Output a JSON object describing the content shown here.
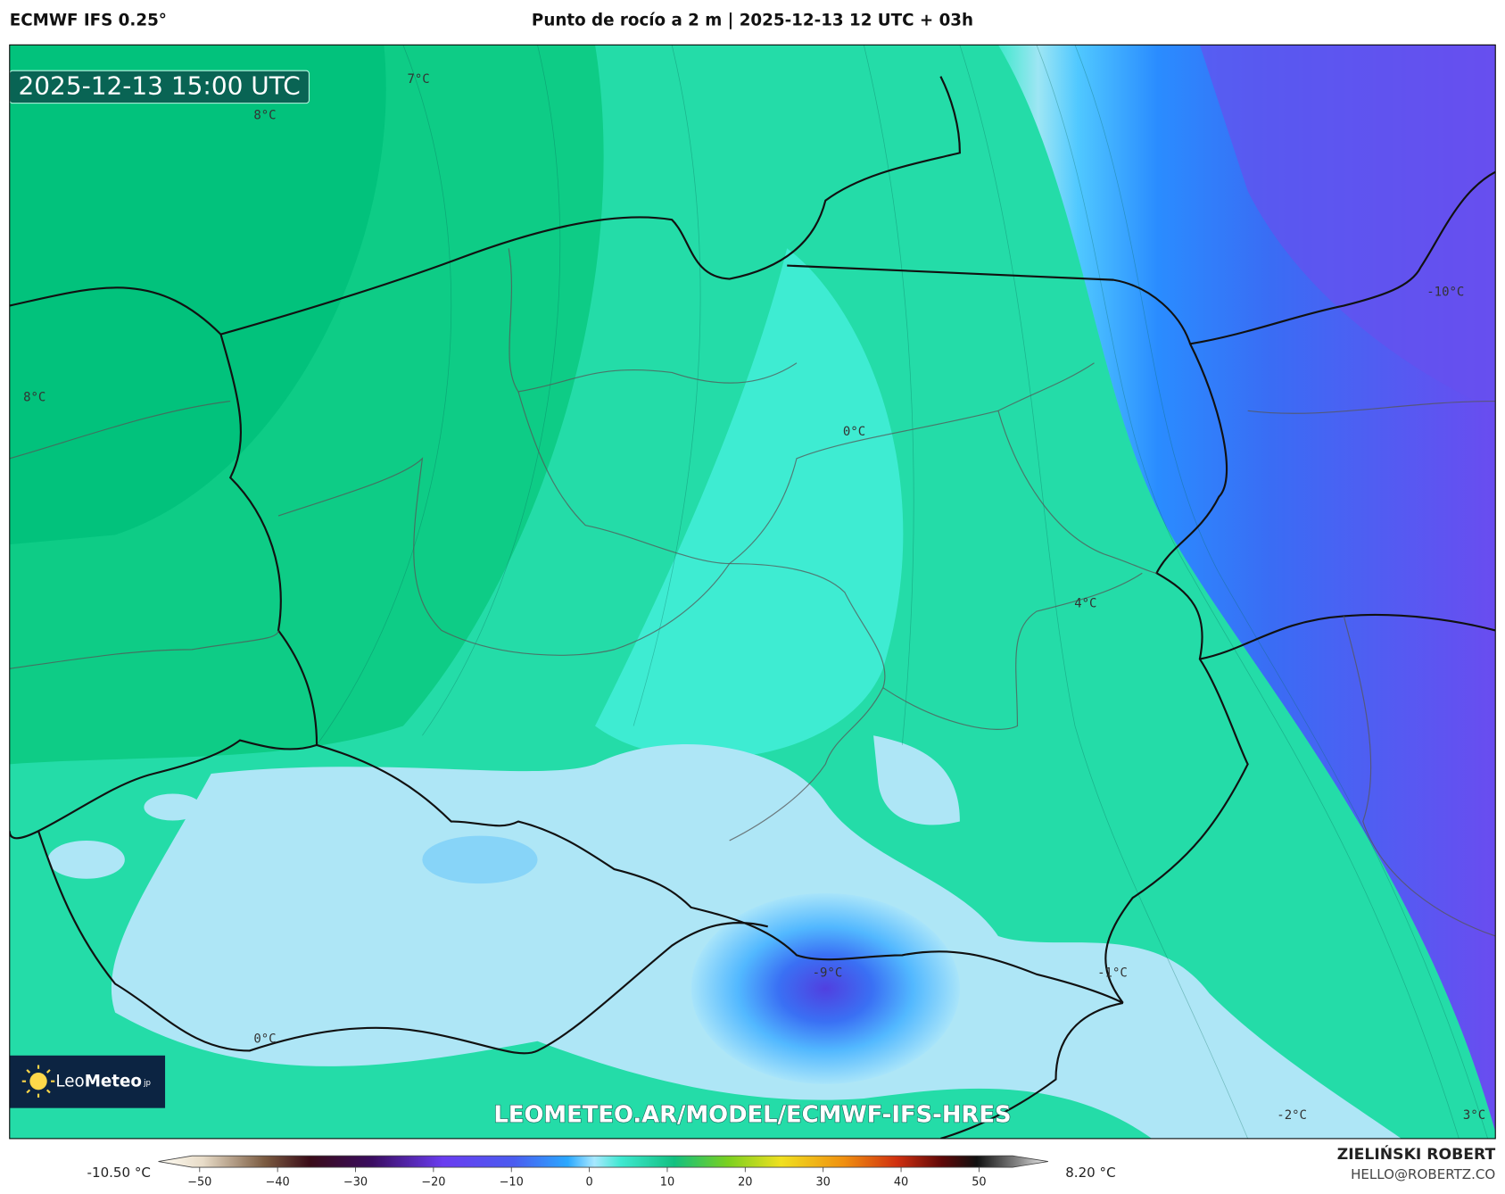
{
  "header": {
    "left_title": "ECMWF IFS 0.25°",
    "center_title": "Punto de rocío a 2 m | 2025-12-13 12 UTC + 03h"
  },
  "map": {
    "timestamp": "2025-12-13 15:00 UTC",
    "contour_labels": [
      "7°C",
      "8°C",
      "8°C",
      "0°C",
      "-10°C",
      "4°C",
      "-9°C",
      "-1°C",
      "0°C",
      "-2°C",
      "3°C"
    ],
    "watermark": "LEOMETEO.AR/MODEL/ECMWF-IFS-HRES"
  },
  "logo": {
    "brand_light": "Leo",
    "brand_bold": "Meteo",
    "suffix": "jp"
  },
  "colorbar": {
    "min_label": "-10.50 °C",
    "max_label": "8.20 °C",
    "ticks": [
      "−50",
      "−40",
      "−30",
      "−20",
      "−10",
      "0",
      "10",
      "20",
      "30",
      "40",
      "50"
    ]
  },
  "author": {
    "name": "ZIELIŃSKI ROBERT",
    "email": "HELLO@ROBERTZ.CO"
  }
}
